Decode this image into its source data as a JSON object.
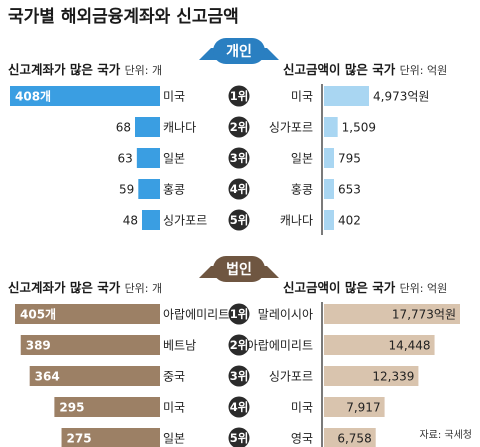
{
  "title": "국가별 해외금융계좌와 신고금액",
  "source": "자료: 국세청",
  "colors": {
    "individual_left": "#3a9ee2",
    "individual_right": "#a9d6f2",
    "individual_badge": "#2a7fc1",
    "corporate_left": "#9c8065",
    "corporate_right": "#d9c4ae",
    "corporate_badge": "#6f5641",
    "rank_circle": "#2b2b2b",
    "divider": "#222222"
  },
  "sections": [
    {
      "key": "individual",
      "badge": "개인",
      "left_title": "신고계좌가 많은 국가",
      "left_unit": "단위: 개",
      "right_title": "신고금액이 많은 국가",
      "right_unit": "단위: 억원",
      "ranks": [
        "1위",
        "2위",
        "3위",
        "4위",
        "5위"
      ],
      "left_countries": [
        "미국",
        "캐나다",
        "일본",
        "홍콩",
        "싱가포르"
      ],
      "left_values": [
        408,
        68,
        63,
        59,
        48
      ],
      "left_labels": [
        "408개",
        "68",
        "63",
        "59",
        "48"
      ],
      "right_countries": [
        "미국",
        "싱가포르",
        "일본",
        "홍콩",
        "캐나다"
      ],
      "right_values": [
        4973,
        1509,
        795,
        653,
        402
      ],
      "right_labels": [
        "4,973억원",
        "1,509",
        "795",
        "653",
        "402"
      ]
    },
    {
      "key": "corporate",
      "badge": "법인",
      "left_title": "신고계좌가 많은 국가",
      "left_unit": "단위: 개",
      "right_title": "신고금액이 많은 국가",
      "right_unit": "단위: 억원",
      "ranks": [
        "1위",
        "2위",
        "3위",
        "4위",
        "5위"
      ],
      "left_countries": [
        "아랍에미리트",
        "베트남",
        "중국",
        "미국",
        "일본"
      ],
      "left_values": [
        405,
        389,
        364,
        295,
        275
      ],
      "left_labels": [
        "405개",
        "389",
        "364",
        "295",
        "275"
      ],
      "right_countries": [
        "말레이시아",
        "아랍에미리트",
        "싱가포르",
        "미국",
        "영국"
      ],
      "right_values": [
        17773,
        14448,
        12339,
        7917,
        6758
      ],
      "right_labels": [
        "17,773억원",
        "14,448",
        "12,339",
        "7,917",
        "6,758"
      ]
    }
  ],
  "chart_data": [
    {
      "type": "bar",
      "title": "개인 — 신고계좌가 많은 국가",
      "categories": [
        "미국",
        "캐나다",
        "일본",
        "홍콩",
        "싱가포르"
      ],
      "values": [
        408,
        68,
        63,
        59,
        48
      ],
      "unit": "개"
    },
    {
      "type": "bar",
      "title": "개인 — 신고금액이 많은 국가",
      "categories": [
        "미국",
        "싱가포르",
        "일본",
        "홍콩",
        "캐나다"
      ],
      "values": [
        4973,
        1509,
        795,
        653,
        402
      ],
      "unit": "억원"
    },
    {
      "type": "bar",
      "title": "법인 — 신고계좌가 많은 국가",
      "categories": [
        "아랍에미리트",
        "베트남",
        "중국",
        "미국",
        "일본"
      ],
      "values": [
        405,
        389,
        364,
        295,
        275
      ],
      "unit": "개"
    },
    {
      "type": "bar",
      "title": "법인 — 신고금액이 많은 국가",
      "categories": [
        "말레이시아",
        "아랍에미리트",
        "싱가포르",
        "미국",
        "영국"
      ],
      "values": [
        17773,
        14448,
        12339,
        7917,
        6758
      ],
      "unit": "억원"
    }
  ]
}
